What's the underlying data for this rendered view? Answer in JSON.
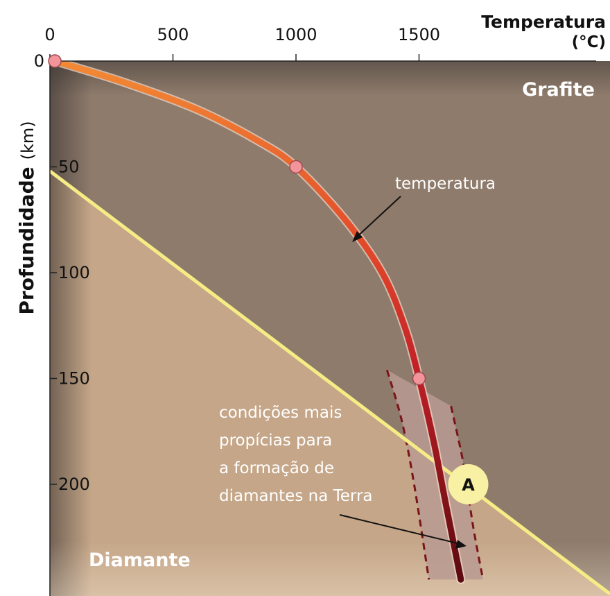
{
  "chart_data": {
    "type": "line",
    "x_axis": {
      "title_line1": "Temperatura",
      "title_line2": "(°C)",
      "ticks": [
        0,
        500,
        1000,
        1500
      ],
      "range": [
        0,
        1800
      ],
      "position": "top"
    },
    "y_axis": {
      "title": "Profundidade",
      "unit": "(km)",
      "ticks": [
        0,
        50,
        100,
        150,
        200
      ],
      "range": [
        0,
        240
      ],
      "inverted": true
    },
    "regions": {
      "upper": "Grafite",
      "lower": "Diamante"
    },
    "series": [
      {
        "name": "temperatura",
        "points": [
          {
            "x": 20,
            "y": 0
          },
          {
            "x": 300,
            "y": 10
          },
          {
            "x": 600,
            "y": 23
          },
          {
            "x": 850,
            "y": 38
          },
          {
            "x": 1000,
            "y": 50
          },
          {
            "x": 1200,
            "y": 75
          },
          {
            "x": 1350,
            "y": 100
          },
          {
            "x": 1440,
            "y": 125
          },
          {
            "x": 1500,
            "y": 150
          },
          {
            "x": 1560,
            "y": 180
          },
          {
            "x": 1610,
            "y": 210
          },
          {
            "x": 1670,
            "y": 245
          }
        ],
        "markers": [
          {
            "x": 20,
            "y": 0
          },
          {
            "x": 1000,
            "y": 50
          },
          {
            "x": 1500,
            "y": 150
          }
        ]
      }
    ],
    "boundary": {
      "points": [
        {
          "x": 0,
          "y": 52
        },
        {
          "x": 1800,
          "y": 210
        }
      ],
      "color": "#f6ec86"
    },
    "favorable_zone": {
      "left": [
        {
          "x": 1370,
          "y": 146
        },
        {
          "x": 1430,
          "y": 170
        },
        {
          "x": 1480,
          "y": 200
        },
        {
          "x": 1540,
          "y": 245
        }
      ],
      "right": [
        {
          "x": 1630,
          "y": 163
        },
        {
          "x": 1680,
          "y": 190
        },
        {
          "x": 1720,
          "y": 220
        },
        {
          "x": 1760,
          "y": 245
        }
      ]
    },
    "marker_A": {
      "label": "A",
      "x": 1700,
      "y": 200
    },
    "annotations": {
      "temperature": "temperatura",
      "zone_lines": [
        "condições mais",
        "propícias para",
        "a formação de",
        "diamantes na Terra"
      ]
    },
    "colors": {
      "graphite": "#8e7b6b",
      "diamond": "#c5a688",
      "curve_start": "#f08232",
      "curve_end": "#5c0a10",
      "marker": "#f2949a",
      "zone_fill": "#b99a92",
      "zone_dash": "#7a1418"
    }
  }
}
